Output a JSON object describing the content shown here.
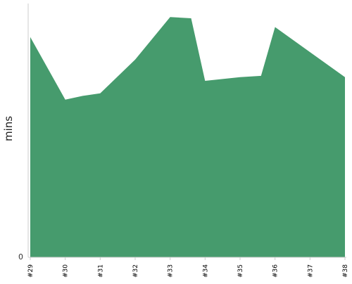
{
  "chart_data": {
    "type": "area",
    "title": "",
    "xlabel": "",
    "ylabel": "mins",
    "x": [
      "#29",
      "#30",
      "#31",
      "#32",
      "#33",
      "#34",
      "#35",
      "#36",
      "#37",
      "#38"
    ],
    "series": [
      {
        "name": "",
        "x": [
          0,
          1,
          1.5,
          2,
          3,
          4,
          4.6,
          5,
          6,
          6.6,
          7,
          8,
          9
        ],
        "values": [
          88,
          63,
          64.5,
          65.5,
          79,
          96,
          95.5,
          70.5,
          72,
          72.5,
          92,
          82,
          72
        ]
      }
    ],
    "x_positions_hint": "",
    "yticks": [
      0
    ],
    "ylim": [
      0,
      100
    ],
    "grid": false,
    "legend": "none",
    "colors": {
      "area": "#469b6d",
      "axis": "#cccccc"
    }
  }
}
